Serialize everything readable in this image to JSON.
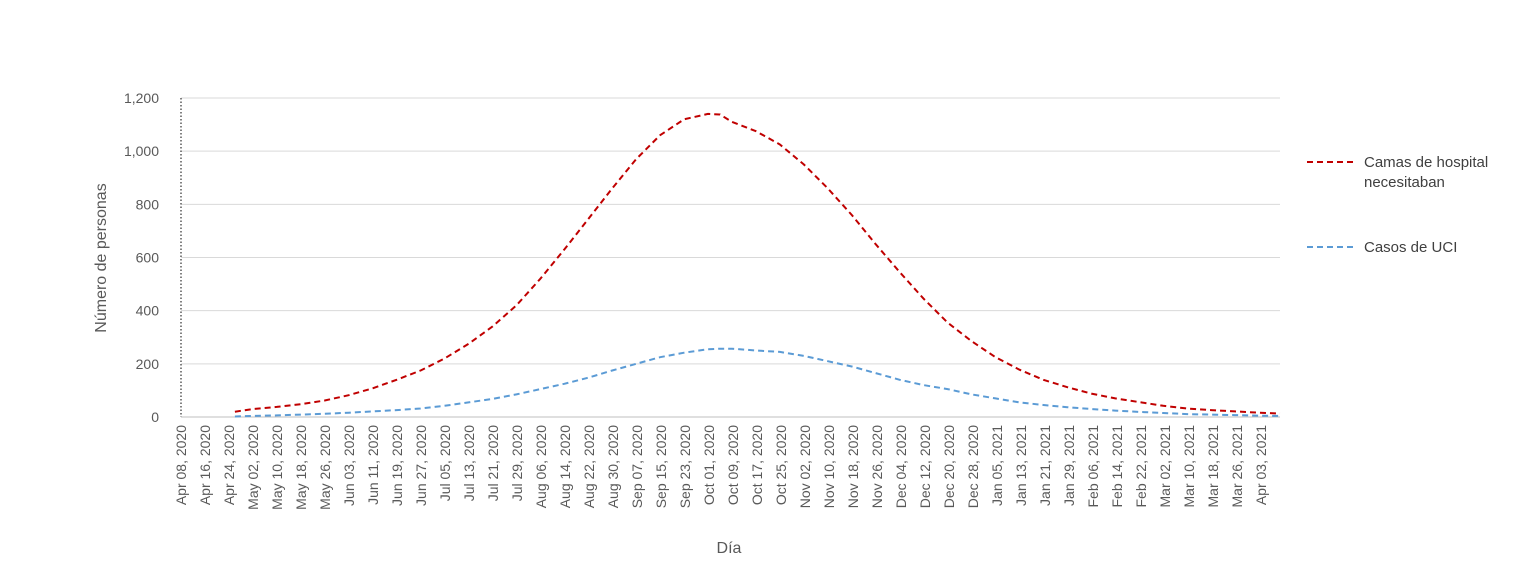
{
  "chart_data": {
    "type": "line",
    "title": "",
    "xlabel": "Día",
    "ylabel": "Número de personas",
    "ylim": [
      0,
      1200
    ],
    "yticks": [
      0,
      200,
      400,
      600,
      800,
      1000,
      1200
    ],
    "ytick_labels": [
      "0",
      "200",
      "400",
      "600",
      "800",
      "1,000",
      "1,200"
    ],
    "grid": "horizontal",
    "legend_position": "right",
    "x_start": "2020-04-08",
    "x_end": "2021-04-10",
    "x_tick_labels": [
      "Apr 08, 2020",
      "Apr 16, 2020",
      "Apr 24, 2020",
      "May 02, 2020",
      "May 10, 2020",
      "May 18, 2020",
      "May 26, 2020",
      "Jun 03, 2020",
      "Jun 11, 2020",
      "Jun 19, 2020",
      "Jun 27, 2020",
      "Jul 05, 2020",
      "Jul 13, 2020",
      "Jul 21, 2020",
      "Jul 29, 2020",
      "Aug 06, 2020",
      "Aug 14, 2020",
      "Aug 22, 2020",
      "Aug 30, 2020",
      "Sep 07, 2020",
      "Sep 15, 2020",
      "Sep 23, 2020",
      "Oct 01, 2020",
      "Oct 09, 2020",
      "Oct 17, 2020",
      "Oct 25, 2020",
      "Nov 02, 2020",
      "Nov 10, 2020",
      "Nov 18, 2020",
      "Nov 26, 2020",
      "Dec 04, 2020",
      "Dec 12, 2020",
      "Dec 20, 2020",
      "Dec 28, 2020",
      "Jan 05, 2021",
      "Jan 13, 2021",
      "Jan 21, 2021",
      "Jan 29, 2021",
      "Feb 06, 2021",
      "Feb 14, 2021",
      "Feb 22, 2021",
      "Mar 02, 2021",
      "Mar 10, 2021",
      "Mar 18, 2021",
      "Mar 26, 2021",
      "Apr 03, 2021"
    ],
    "x": [
      "2020-04-26",
      "2020-05-02",
      "2020-05-10",
      "2020-05-18",
      "2020-05-26",
      "2020-06-03",
      "2020-06-11",
      "2020-06-19",
      "2020-06-27",
      "2020-07-05",
      "2020-07-13",
      "2020-07-21",
      "2020-07-29",
      "2020-08-06",
      "2020-08-14",
      "2020-08-22",
      "2020-08-30",
      "2020-09-07",
      "2020-09-15",
      "2020-09-23",
      "2020-10-01",
      "2020-10-05",
      "2020-10-09",
      "2020-10-17",
      "2020-10-25",
      "2020-11-02",
      "2020-11-10",
      "2020-11-18",
      "2020-11-26",
      "2020-12-04",
      "2020-12-12",
      "2020-12-20",
      "2020-12-28",
      "2021-01-05",
      "2021-01-13",
      "2021-01-21",
      "2021-01-29",
      "2021-02-06",
      "2021-02-14",
      "2021-02-22",
      "2021-03-02",
      "2021-03-10",
      "2021-03-18",
      "2021-03-26",
      "2021-04-03",
      "2021-04-10"
    ],
    "series": [
      {
        "name": "Camas de hospital necesitaban",
        "color": "#c00000",
        "style": "dashed",
        "values": [
          20,
          30,
          38,
          48,
          62,
          82,
          108,
          140,
          175,
          220,
          275,
          340,
          420,
          520,
          630,
          745,
          860,
          970,
          1060,
          1120,
          1140,
          1138,
          1110,
          1075,
          1025,
          950,
          860,
          760,
          650,
          545,
          445,
          355,
          285,
          225,
          178,
          140,
          112,
          88,
          70,
          56,
          42,
          32,
          26,
          21,
          16,
          13
        ]
      },
      {
        "name": "Casos de UCI",
        "color": "#5b9bd5",
        "style": "dashed",
        "values": [
          2,
          4,
          6,
          9,
          12,
          16,
          21,
          26,
          32,
          42,
          55,
          68,
          85,
          105,
          125,
          148,
          175,
          200,
          225,
          242,
          255,
          257,
          257,
          250,
          245,
          230,
          210,
          190,
          165,
          140,
          120,
          105,
          85,
          70,
          55,
          45,
          37,
          30,
          24,
          19,
          15,
          11,
          9,
          7,
          5,
          4
        ]
      }
    ]
  }
}
